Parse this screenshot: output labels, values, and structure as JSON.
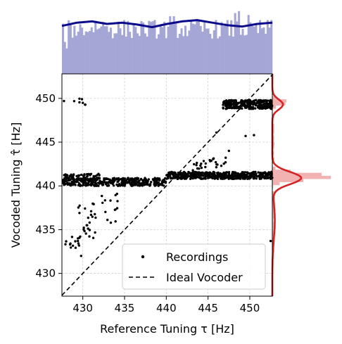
{
  "chart_data": {
    "type": "scatter",
    "xlabel": "Reference Tuning τ  [Hz]",
    "ylabel": "Vocoded Tuning τ̂ [Hz]",
    "xlim": [
      427.5,
      452.7
    ],
    "ylim": [
      427.4,
      452.8
    ],
    "xticks": [
      "430",
      "435",
      "440",
      "445",
      "450"
    ],
    "yticks": [
      "430",
      "435",
      "440",
      "445",
      "450"
    ],
    "grid": true,
    "legend": {
      "placement": "lower-right",
      "entries": [
        {
          "label": "Recordings",
          "marker": "dot",
          "color": "#000000"
        },
        {
          "label": "Ideal Vocoder",
          "marker": "dashed-line",
          "color": "#000000"
        }
      ]
    },
    "colors": {
      "points": "#000000",
      "top_hist": "#a4a6d6",
      "top_kde": "#0a0a8a",
      "right_hist": "#f2b2b2",
      "right_kde": "#d42424"
    },
    "series": [
      {
        "name": "Recordings",
        "kind": "scatter"
      },
      {
        "name": "Ideal Vocoder",
        "kind": "line",
        "x": [
          427.5,
          452.7
        ],
        "y": [
          427.5,
          452.7
        ]
      }
    ],
    "clusters": [
      {
        "x0": 427.6,
        "x1": 440.0,
        "y0": 440.0,
        "y1": 440.9,
        "n": 380
      },
      {
        "x0": 427.6,
        "x1": 432.0,
        "y0": 440.6,
        "y1": 441.4,
        "n": 80
      },
      {
        "x0": 440.0,
        "x1": 452.7,
        "y0": 440.8,
        "y1": 441.6,
        "n": 520
      },
      {
        "x0": 446.8,
        "x1": 452.7,
        "y0": 448.8,
        "y1": 449.8,
        "n": 260
      },
      {
        "x0": 429.4,
        "x1": 431.6,
        "y0": 433.8,
        "y1": 438.4,
        "n": 24
      },
      {
        "x0": 427.8,
        "x1": 429.8,
        "y0": 432.8,
        "y1": 434.2,
        "n": 14
      },
      {
        "x0": 432.2,
        "x1": 434.2,
        "y0": 435.4,
        "y1": 439.2,
        "n": 14
      },
      {
        "x0": 443.0,
        "x1": 445.5,
        "y0": 441.6,
        "y1": 443.0,
        "n": 14
      },
      {
        "x0": 445.2,
        "x1": 447.2,
        "y0": 441.4,
        "y1": 443.4,
        "n": 12
      },
      {
        "x0": 427.7,
        "x1": 430.5,
        "y0": 449.2,
        "y1": 450.2,
        "n": 8
      }
    ],
    "extra_points": [
      [
        429.8,
        432.0
      ],
      [
        431.0,
        437.1
      ],
      [
        446.0,
        446.1
      ],
      [
        447.5,
        444.0
      ],
      [
        449.5,
        445.7
      ],
      [
        450.5,
        445.8
      ],
      [
        452.5,
        433.7
      ],
      [
        452.6,
        441.6
      ]
    ],
    "marginal_x_kde": [
      0.75,
      0.8,
      0.82,
      0.78,
      0.8,
      0.77,
      0.73,
      0.78,
      0.82,
      0.84,
      0.8,
      0.76,
      0.74,
      0.78,
      0.8
    ],
    "marginal_y_kde": [
      [
        427.5,
        0.0
      ],
      [
        432.0,
        0.04
      ],
      [
        436.0,
        0.12
      ],
      [
        439.0,
        0.6
      ],
      [
        440.8,
        1.0
      ],
      [
        442.5,
        0.55
      ],
      [
        445.0,
        0.05
      ],
      [
        448.0,
        0.12
      ],
      [
        449.3,
        0.45
      ],
      [
        450.5,
        0.12
      ],
      [
        452.7,
        0.0
      ]
    ]
  }
}
